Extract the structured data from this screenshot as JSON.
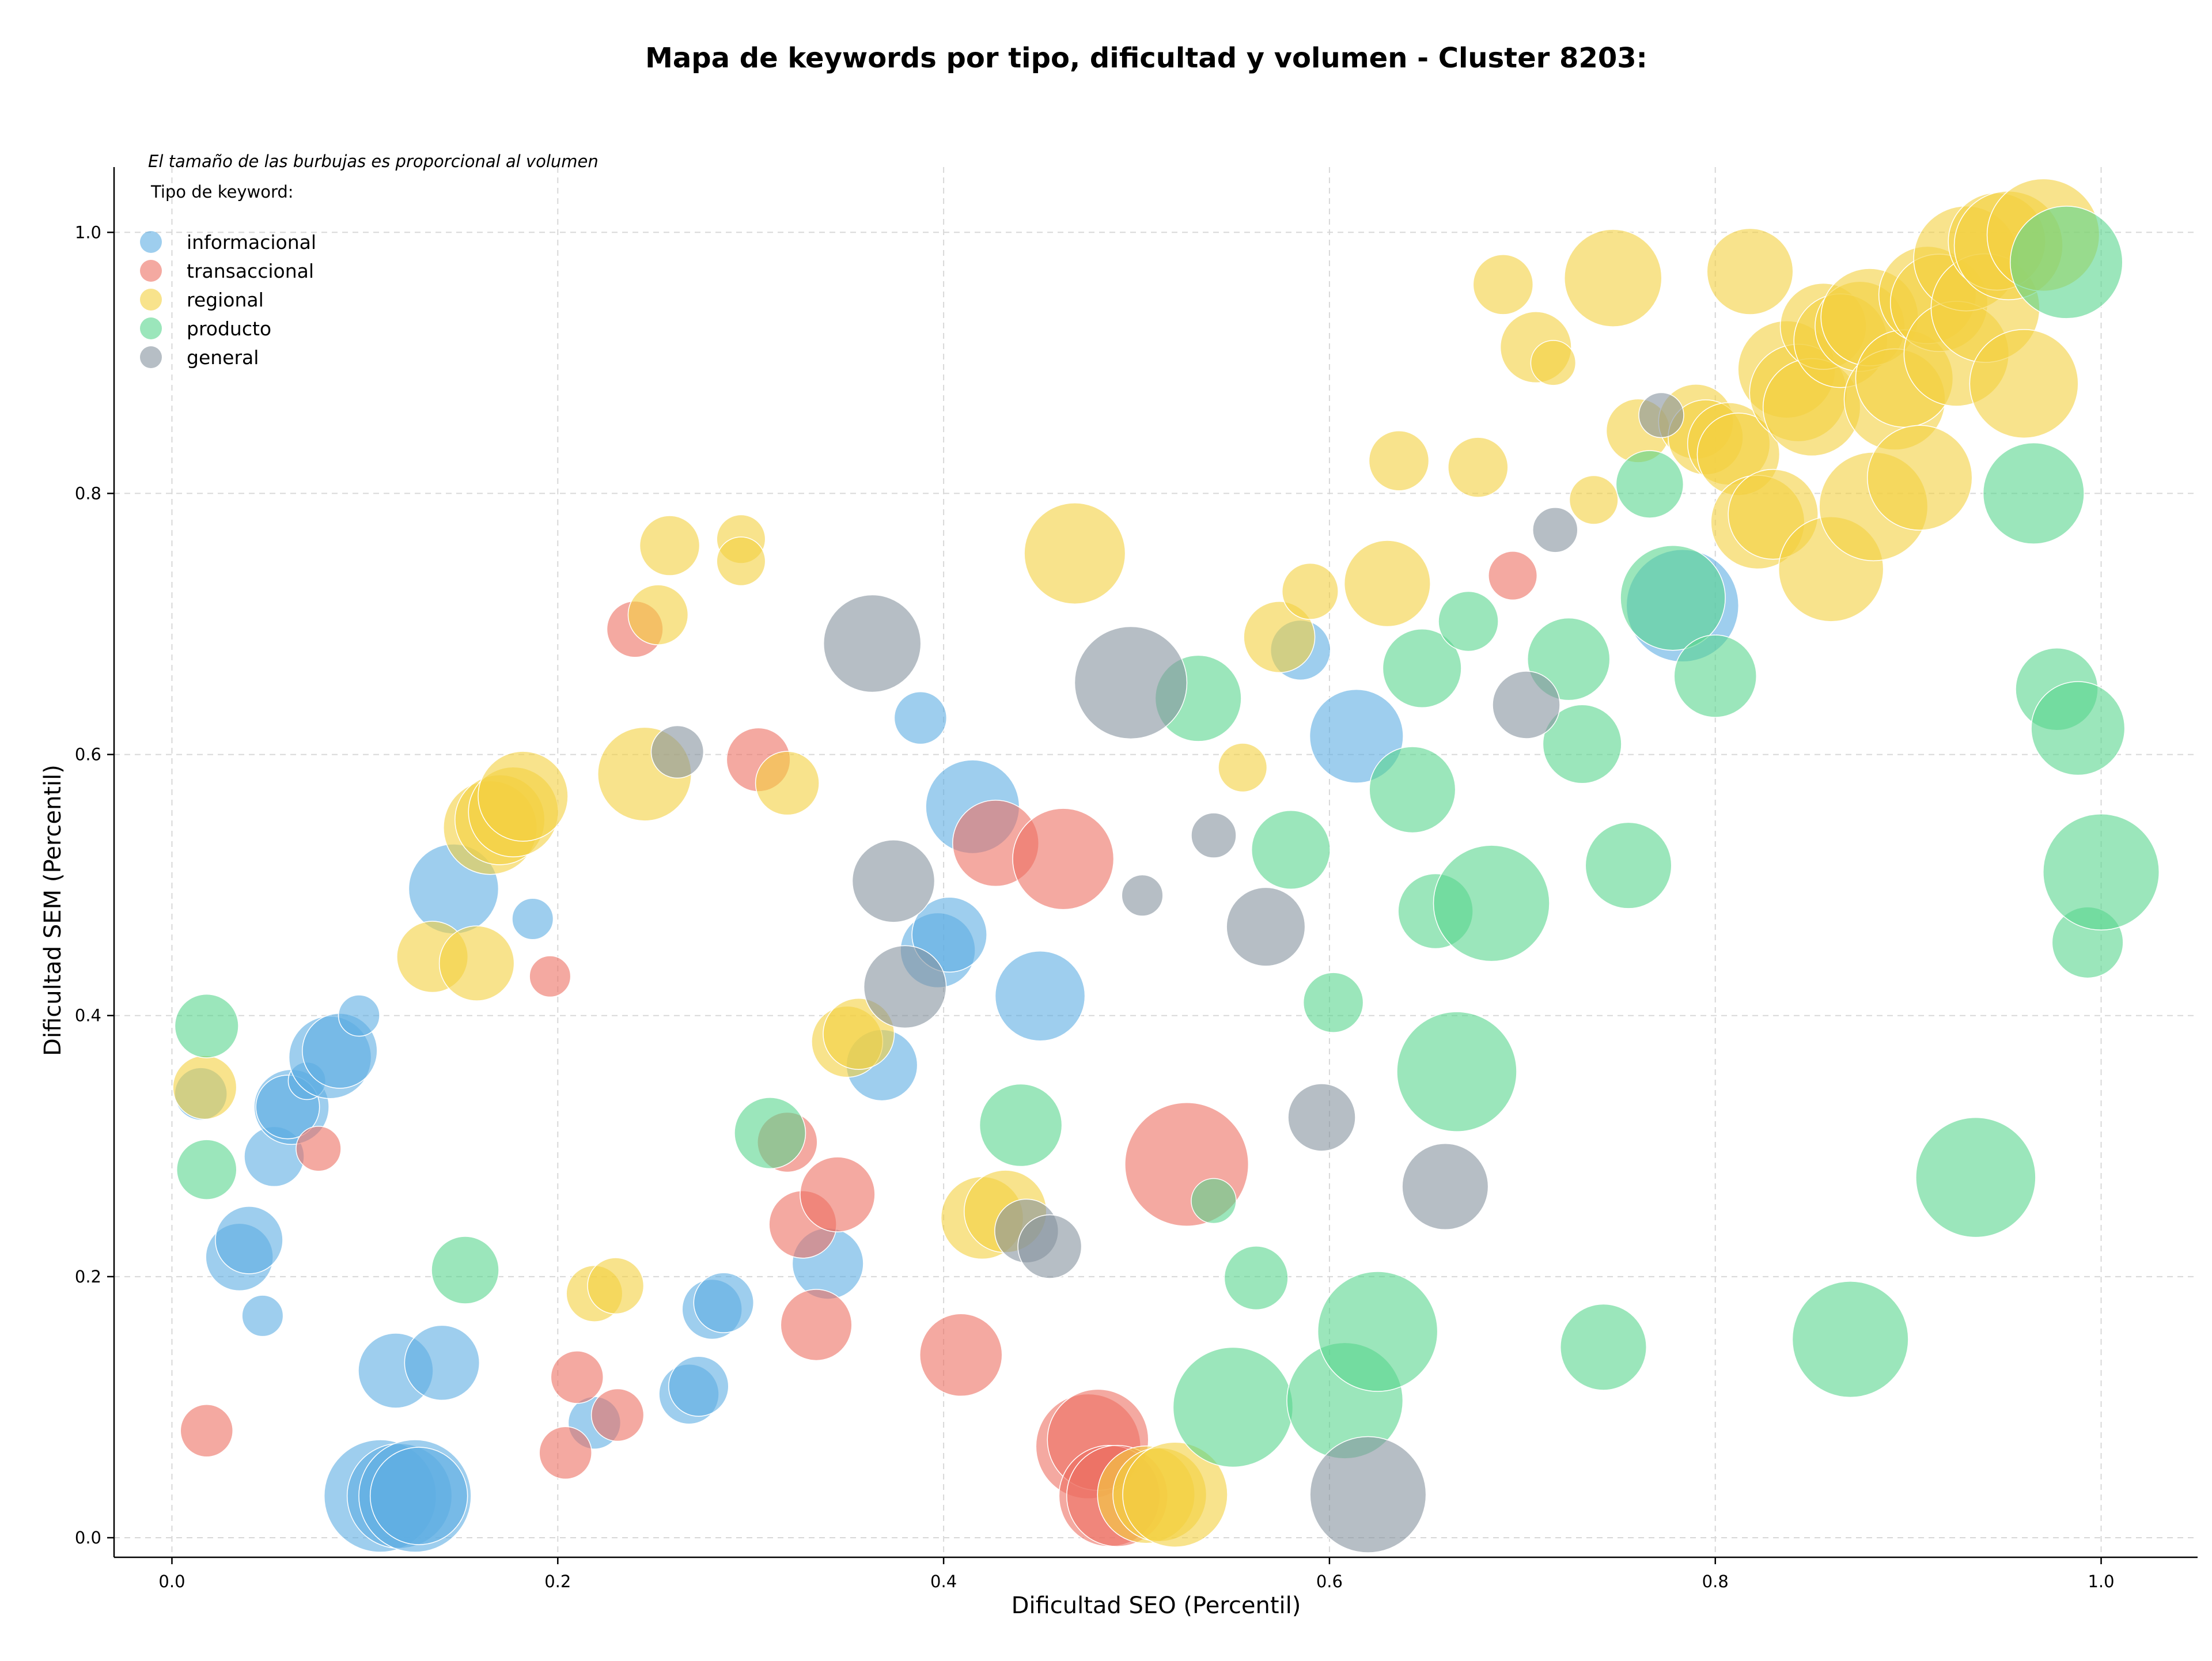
{
  "chart_data": {
    "type": "scatter",
    "title": "Mapa de keywords por tipo, dificultad y volumen - Cluster 8203:",
    "xlabel": "Dificultad SEO (Percentil)",
    "ylabel": "Dificultad SEM (Percentil)",
    "xlim": [
      -0.03,
      1.05
    ],
    "ylim": [
      -0.015,
      1.05
    ],
    "xticks": [
      "0.0",
      "0.2",
      "0.4",
      "0.6",
      "0.8",
      "1.0"
    ],
    "yticks": [
      "0.0",
      "0.2",
      "0.4",
      "0.6",
      "0.8",
      "1.0"
    ],
    "grid": true,
    "note": "El tamaño de las burbujas es proporcional al volumen",
    "legend_title": "Tipo de keyword:",
    "legend_position": "top-left",
    "series": [
      {
        "name": "informacional",
        "color": "#5DADE2",
        "points": [
          [
            0.015,
            0.34,
            14
          ],
          [
            0.035,
            0.215,
            18
          ],
          [
            0.04,
            0.228,
            18
          ],
          [
            0.047,
            0.17,
            11
          ],
          [
            0.053,
            0.292,
            16
          ],
          [
            0.062,
            0.33,
            20
          ],
          [
            0.06,
            0.33,
            17
          ],
          [
            0.07,
            0.35,
            10
          ],
          [
            0.082,
            0.368,
            22
          ],
          [
            0.087,
            0.373,
            20
          ],
          [
            0.097,
            0.4,
            11
          ],
          [
            0.108,
            0.032,
            30
          ],
          [
            0.116,
            0.128,
            20
          ],
          [
            0.118,
            0.032,
            28
          ],
          [
            0.126,
            0.032,
            30
          ],
          [
            0.128,
            0.032,
            26
          ],
          [
            0.14,
            0.134,
            20
          ],
          [
            0.146,
            0.497,
            24
          ],
          [
            0.187,
            0.474,
            11
          ],
          [
            0.219,
            0.088,
            14
          ],
          [
            0.268,
            0.11,
            16
          ],
          [
            0.273,
            0.116,
            16
          ],
          [
            0.28,
            0.175,
            16
          ],
          [
            0.286,
            0.18,
            16
          ],
          [
            0.34,
            0.21,
            19
          ],
          [
            0.368,
            0.362,
            19
          ],
          [
            0.388,
            0.628,
            14
          ],
          [
            0.397,
            0.45,
            20
          ],
          [
            0.403,
            0.462,
            20
          ],
          [
            0.415,
            0.56,
            25
          ],
          [
            0.45,
            0.415,
            24
          ],
          [
            0.585,
            0.68,
            16
          ],
          [
            0.614,
            0.614,
            25
          ],
          [
            0.783,
            0.714,
            30
          ]
        ]
      },
      {
        "name": "transaccional",
        "color": "#EC7063",
        "points": [
          [
            0.018,
            0.082,
            14
          ],
          [
            0.076,
            0.298,
            12
          ],
          [
            0.196,
            0.43,
            11
          ],
          [
            0.204,
            0.065,
            14
          ],
          [
            0.21,
            0.123,
            14
          ],
          [
            0.231,
            0.094,
            14
          ],
          [
            0.24,
            0.696,
            15
          ],
          [
            0.304,
            0.596,
            17
          ],
          [
            0.319,
            0.303,
            16
          ],
          [
            0.327,
            0.24,
            18
          ],
          [
            0.334,
            0.163,
            19
          ],
          [
            0.345,
            0.263,
            20
          ],
          [
            0.409,
            0.14,
            22
          ],
          [
            0.427,
            0.532,
            23
          ],
          [
            0.462,
            0.52,
            27
          ],
          [
            0.475,
            0.07,
            28
          ],
          [
            0.48,
            0.075,
            27
          ],
          [
            0.486,
            0.032,
            27
          ],
          [
            0.49,
            0.032,
            27
          ],
          [
            0.526,
            0.286,
            33
          ],
          [
            0.695,
            0.737,
            13
          ]
        ]
      },
      {
        "name": "regional",
        "color": "#F4D03F",
        "points": [
          [
            0.017,
            0.345,
            17
          ],
          [
            0.135,
            0.445,
            19
          ],
          [
            0.158,
            0.44,
            20
          ],
          [
            0.165,
            0.544,
            25
          ],
          [
            0.17,
            0.55,
            24
          ],
          [
            0.177,
            0.556,
            24
          ],
          [
            0.182,
            0.568,
            24
          ],
          [
            0.245,
            0.585,
            25
          ],
          [
            0.252,
            0.707,
            16
          ],
          [
            0.258,
            0.76,
            16
          ],
          [
            0.295,
            0.765,
            13
          ],
          [
            0.295,
            0.748,
            13
          ],
          [
            0.319,
            0.578,
            17
          ],
          [
            0.219,
            0.187,
            15
          ],
          [
            0.23,
            0.193,
            15
          ],
          [
            0.35,
            0.38,
            19
          ],
          [
            0.356,
            0.386,
            19
          ],
          [
            0.42,
            0.245,
            22
          ],
          [
            0.432,
            0.25,
            22
          ],
          [
            0.468,
            0.754,
            27
          ],
          [
            0.505,
            0.033,
            26
          ],
          [
            0.512,
            0.033,
            25
          ],
          [
            0.52,
            0.033,
            28
          ],
          [
            0.555,
            0.59,
            13
          ],
          [
            0.574,
            0.69,
            19
          ],
          [
            0.59,
            0.725,
            15
          ],
          [
            0.63,
            0.731,
            23
          ],
          [
            0.636,
            0.825,
            16
          ],
          [
            0.677,
            0.82,
            16
          ],
          [
            0.69,
            0.96,
            16
          ],
          [
            0.707,
            0.912,
            19
          ],
          [
            0.716,
            0.9,
            12
          ],
          [
            0.737,
            0.795,
            13
          ],
          [
            0.747,
            0.965,
            26
          ],
          [
            0.76,
            0.848,
            17
          ],
          [
            0.79,
            0.855,
            20
          ],
          [
            0.795,
            0.843,
            20
          ],
          [
            0.807,
            0.838,
            22
          ],
          [
            0.812,
            0.83,
            22
          ],
          [
            0.818,
            0.97,
            23
          ],
          [
            0.822,
            0.778,
            25
          ],
          [
            0.83,
            0.784,
            24
          ],
          [
            0.837,
            0.895,
            26
          ],
          [
            0.843,
            0.877,
            26
          ],
          [
            0.85,
            0.866,
            26
          ],
          [
            0.856,
            0.928,
            23
          ],
          [
            0.86,
            0.742,
            28
          ],
          [
            0.865,
            0.917,
            25
          ],
          [
            0.875,
            0.928,
            24
          ],
          [
            0.88,
            0.935,
            26
          ],
          [
            0.882,
            0.79,
            29
          ],
          [
            0.893,
            0.872,
            27
          ],
          [
            0.898,
            0.888,
            26
          ],
          [
            0.906,
            0.812,
            28
          ],
          [
            0.91,
            0.952,
            26
          ],
          [
            0.916,
            0.946,
            26
          ],
          [
            0.925,
            0.907,
            28
          ],
          [
            0.93,
            0.98,
            28
          ],
          [
            0.94,
            0.942,
            29
          ],
          [
            0.946,
            0.993,
            26
          ],
          [
            0.952,
            0.99,
            29
          ],
          [
            0.96,
            0.884,
            29
          ],
          [
            0.97,
            0.998,
            30
          ]
        ]
      },
      {
        "name": "producto",
        "color": "#58D68D",
        "points": [
          [
            0.018,
            0.392,
            17
          ],
          [
            0.018,
            0.282,
            16
          ],
          [
            0.152,
            0.205,
            18
          ],
          [
            0.31,
            0.31,
            19
          ],
          [
            0.44,
            0.316,
            22
          ],
          [
            0.532,
            0.643,
            23
          ],
          [
            0.54,
            0.258,
            12
          ],
          [
            0.55,
            0.1,
            32
          ],
          [
            0.562,
            0.199,
            17
          ],
          [
            0.58,
            0.527,
            21
          ],
          [
            0.602,
            0.41,
            16
          ],
          [
            0.608,
            0.105,
            31
          ],
          [
            0.625,
            0.158,
            32
          ],
          [
            0.643,
            0.573,
            23
          ],
          [
            0.648,
            0.666,
            21
          ],
          [
            0.655,
            0.48,
            20
          ],
          [
            0.666,
            0.357,
            32
          ],
          [
            0.672,
            0.702,
            16
          ],
          [
            0.684,
            0.486,
            31
          ],
          [
            0.724,
            0.673,
            22
          ],
          [
            0.731,
            0.608,
            21
          ],
          [
            0.742,
            0.146,
            23
          ],
          [
            0.755,
            0.515,
            23
          ],
          [
            0.766,
            0.807,
            18
          ],
          [
            0.778,
            0.72,
            28
          ],
          [
            0.8,
            0.66,
            22
          ],
          [
            0.87,
            0.152,
            31
          ],
          [
            0.935,
            0.276,
            32
          ],
          [
            0.965,
            0.8,
            27
          ],
          [
            0.977,
            0.65,
            22
          ],
          [
            0.982,
            0.977,
            30
          ],
          [
            0.988,
            0.62,
            25
          ],
          [
            0.993,
            0.456,
            19
          ],
          [
            1.0,
            0.51,
            31
          ]
        ]
      },
      {
        "name": "general",
        "color": "#85929E",
        "points": [
          [
            0.262,
            0.602,
            14
          ],
          [
            0.363,
            0.685,
            26
          ],
          [
            0.374,
            0.503,
            22
          ],
          [
            0.38,
            0.422,
            22
          ],
          [
            0.443,
            0.235,
            17
          ],
          [
            0.455,
            0.223,
            17
          ],
          [
            0.497,
            0.655,
            30
          ],
          [
            0.503,
            0.492,
            11
          ],
          [
            0.54,
            0.538,
            12
          ],
          [
            0.567,
            0.468,
            21
          ],
          [
            0.596,
            0.322,
            18
          ],
          [
            0.62,
            0.033,
            31
          ],
          [
            0.66,
            0.269,
            23
          ],
          [
            0.702,
            0.638,
            18
          ],
          [
            0.717,
            0.772,
            12
          ],
          [
            0.772,
            0.86,
            12
          ]
        ]
      }
    ]
  }
}
